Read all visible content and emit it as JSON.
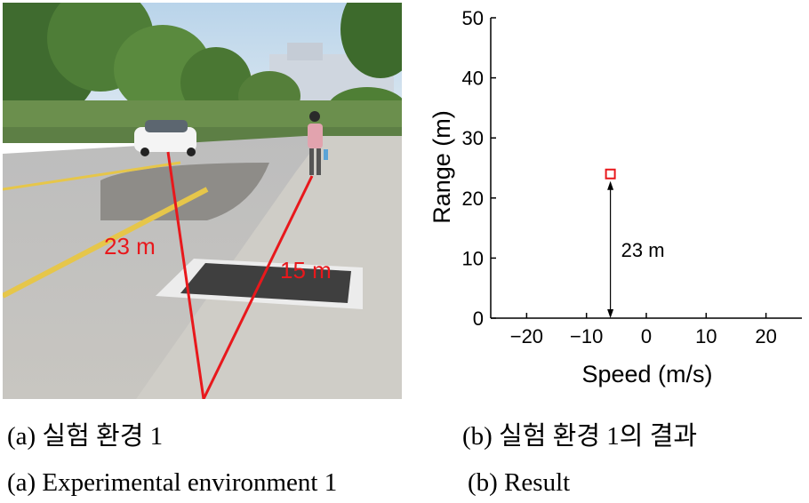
{
  "photo": {
    "annotations": {
      "car_distance": "23 m",
      "pedestrian_distance": "15 m"
    },
    "line_color": "#e8181c"
  },
  "chart_data": {
    "type": "scatter",
    "xlabel": "Speed (m/s)",
    "ylabel": "Range (m)",
    "xlim": [
      -26,
      26
    ],
    "ylim": [
      0,
      50
    ],
    "x_ticks": [
      -20,
      -10,
      0,
      10,
      20
    ],
    "x_tick_labels": [
      "−20",
      "−10",
      "0",
      "10",
      "20"
    ],
    "y_ticks": [
      0,
      10,
      20,
      30,
      40,
      50
    ],
    "y_tick_labels": [
      "0",
      "10",
      "20",
      "30",
      "40",
      "50"
    ],
    "grid": false,
    "points": [
      {
        "x": -6,
        "y": 24
      }
    ],
    "marker": "hollow-square",
    "marker_color": "#e8181c",
    "annotation": {
      "text": "23 m",
      "x": -6,
      "y_from": 0,
      "y_to": 24
    }
  },
  "captions": {
    "a_korean": "(a) 실험 환경 1",
    "b_korean": "(b) 실험 환경 1의 결과",
    "a_english": "(a) Experimental environment 1",
    "b_english": "(b) Result"
  }
}
